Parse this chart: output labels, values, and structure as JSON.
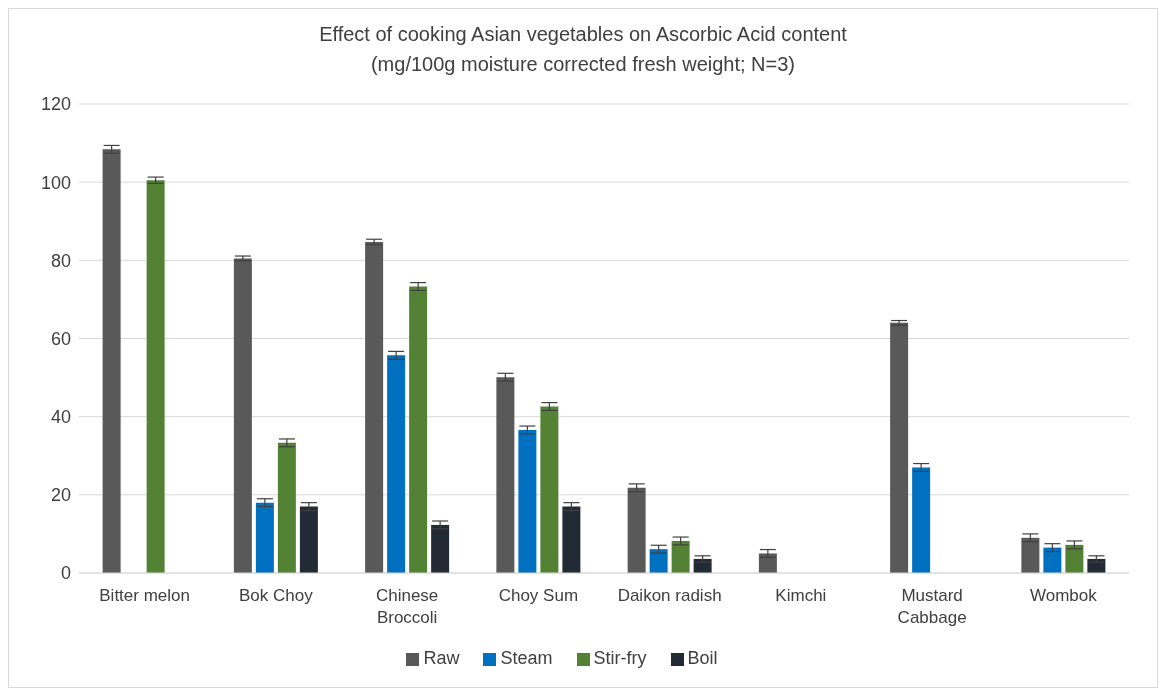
{
  "chart_data": {
    "type": "bar",
    "title": "Effect of cooking Asian vegetables on Ascorbic Acid content",
    "subtitle": "(mg/100g moisture corrected fresh weight; N=3)",
    "categories": [
      "Bitter melon",
      "Bok Choy",
      "Chinese Broccoli",
      "Choy Sum",
      "Daikon radish",
      "Kimchi",
      "Mustard Cabbage",
      "Wombok"
    ],
    "series": [
      {
        "name": "Raw",
        "color": "#595959",
        "values": [
          108.4,
          80.5,
          84.7,
          50.1,
          21.8,
          5,
          64,
          9
        ],
        "errors": [
          1,
          0.6,
          0.7,
          1,
          1,
          1,
          0.6,
          1
        ]
      },
      {
        "name": "Steam",
        "color": "#0070c0",
        "values": [
          null,
          18,
          55.7,
          36.6,
          6.1,
          null,
          27,
          6.5
        ],
        "errors": [
          null,
          1,
          1,
          1,
          1,
          null,
          1,
          1
        ]
      },
      {
        "name": "Stir-fry",
        "color": "#548235",
        "values": [
          100.5,
          33.3,
          73.3,
          42.6,
          8.2,
          null,
          null,
          7.2
        ],
        "errors": [
          0.8,
          1,
          1,
          1,
          1,
          null,
          null,
          1
        ]
      },
      {
        "name": "Boil",
        "color": "#222a35",
        "values": [
          null,
          17,
          12.3,
          17,
          3.6,
          null,
          null,
          3.6
        ],
        "errors": [
          null,
          1,
          1,
          1,
          0.8,
          null,
          null,
          0.8
        ]
      }
    ],
    "ylim": [
      0,
      120
    ],
    "yticks": [
      0,
      20,
      40,
      60,
      80,
      100,
      120
    ],
    "grid": "y",
    "legend": "bottom"
  }
}
